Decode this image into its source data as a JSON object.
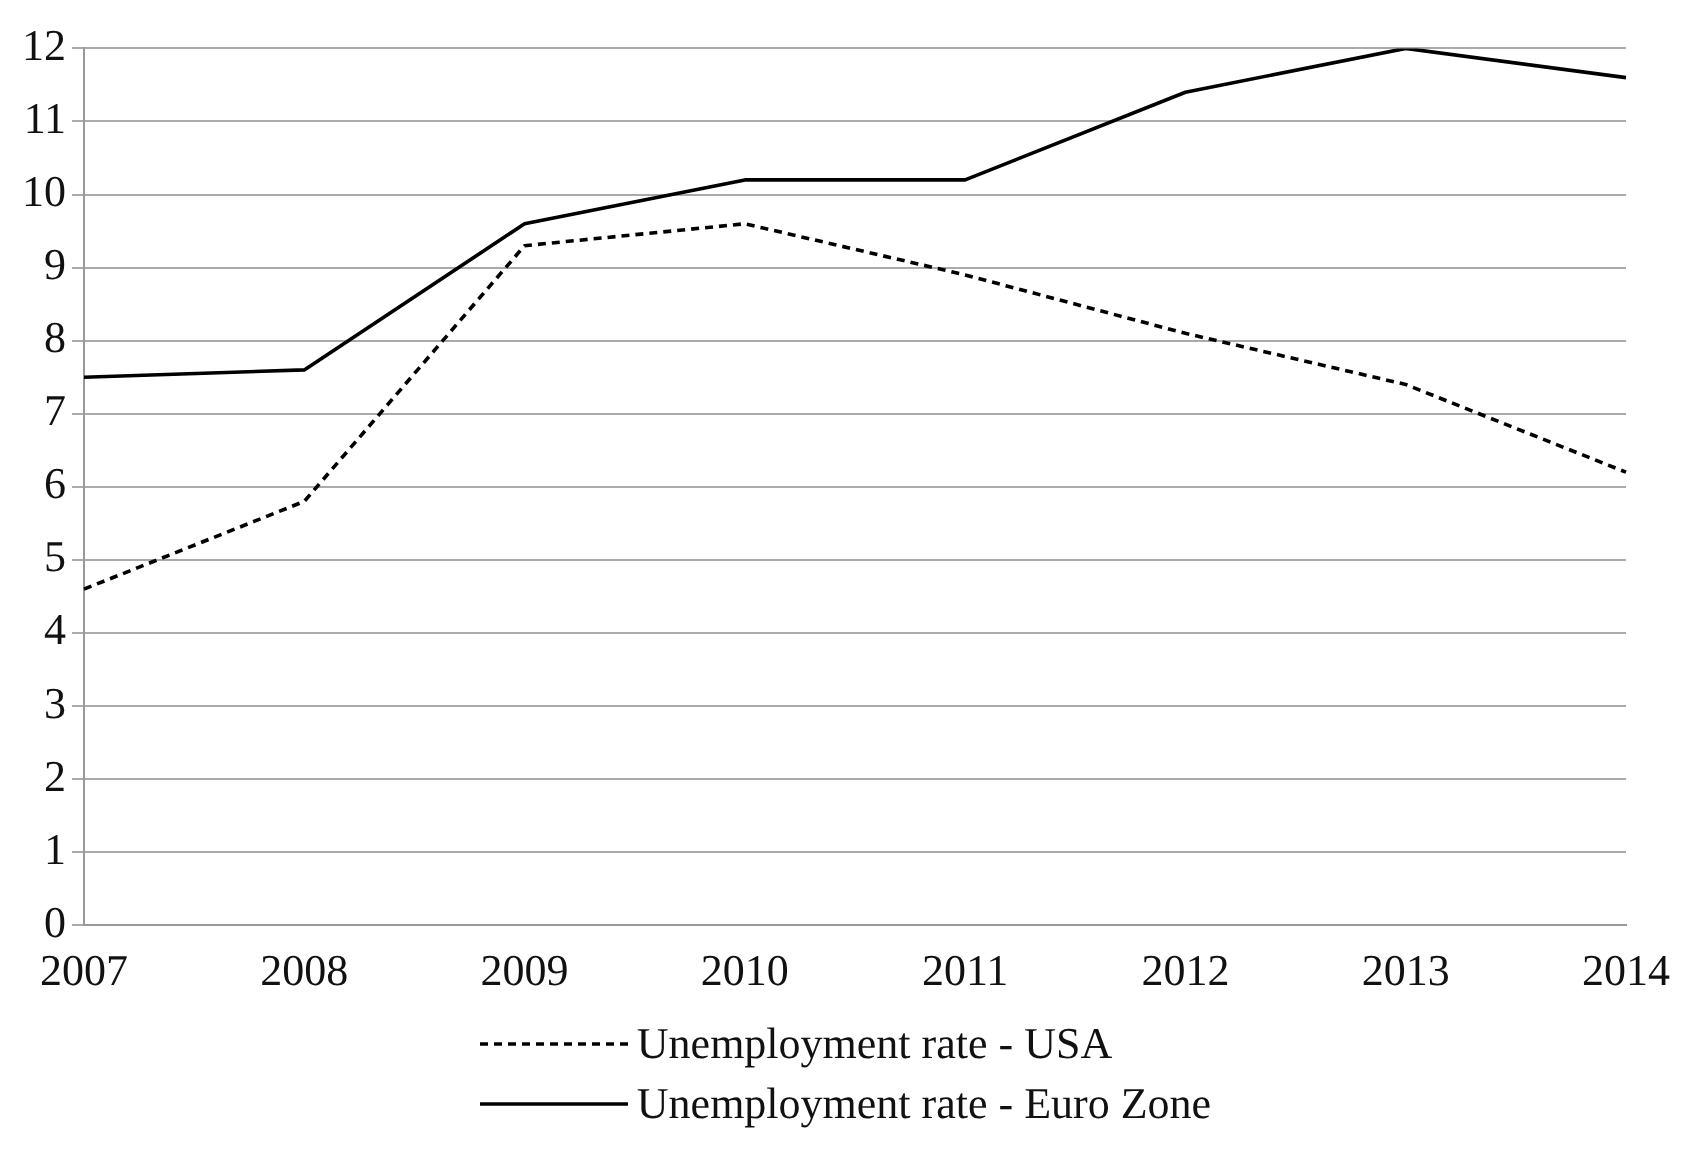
{
  "chart_data": {
    "type": "line",
    "categories": [
      "2007",
      "2008",
      "2009",
      "2010",
      "2011",
      "2012",
      "2013",
      "2014"
    ],
    "series": [
      {
        "name": "Unemployment rate - USA",
        "color": "#000000",
        "line_style": "dashed",
        "values": [
          4.6,
          5.8,
          9.3,
          9.6,
          8.9,
          8.1,
          7.4,
          6.2
        ]
      },
      {
        "name": "Unemployment rate - Euro Zone",
        "color": "#000000",
        "line_style": "solid",
        "values": [
          7.5,
          7.6,
          9.6,
          10.2,
          10.2,
          11.4,
          12.0,
          11.6
        ]
      }
    ],
    "ylim": [
      0,
      12
    ],
    "yticks": [
      0,
      1,
      2,
      3,
      4,
      5,
      6,
      7,
      8,
      9,
      10,
      11,
      12
    ],
    "grid": "y",
    "legend": "bottom",
    "marker": "none"
  }
}
